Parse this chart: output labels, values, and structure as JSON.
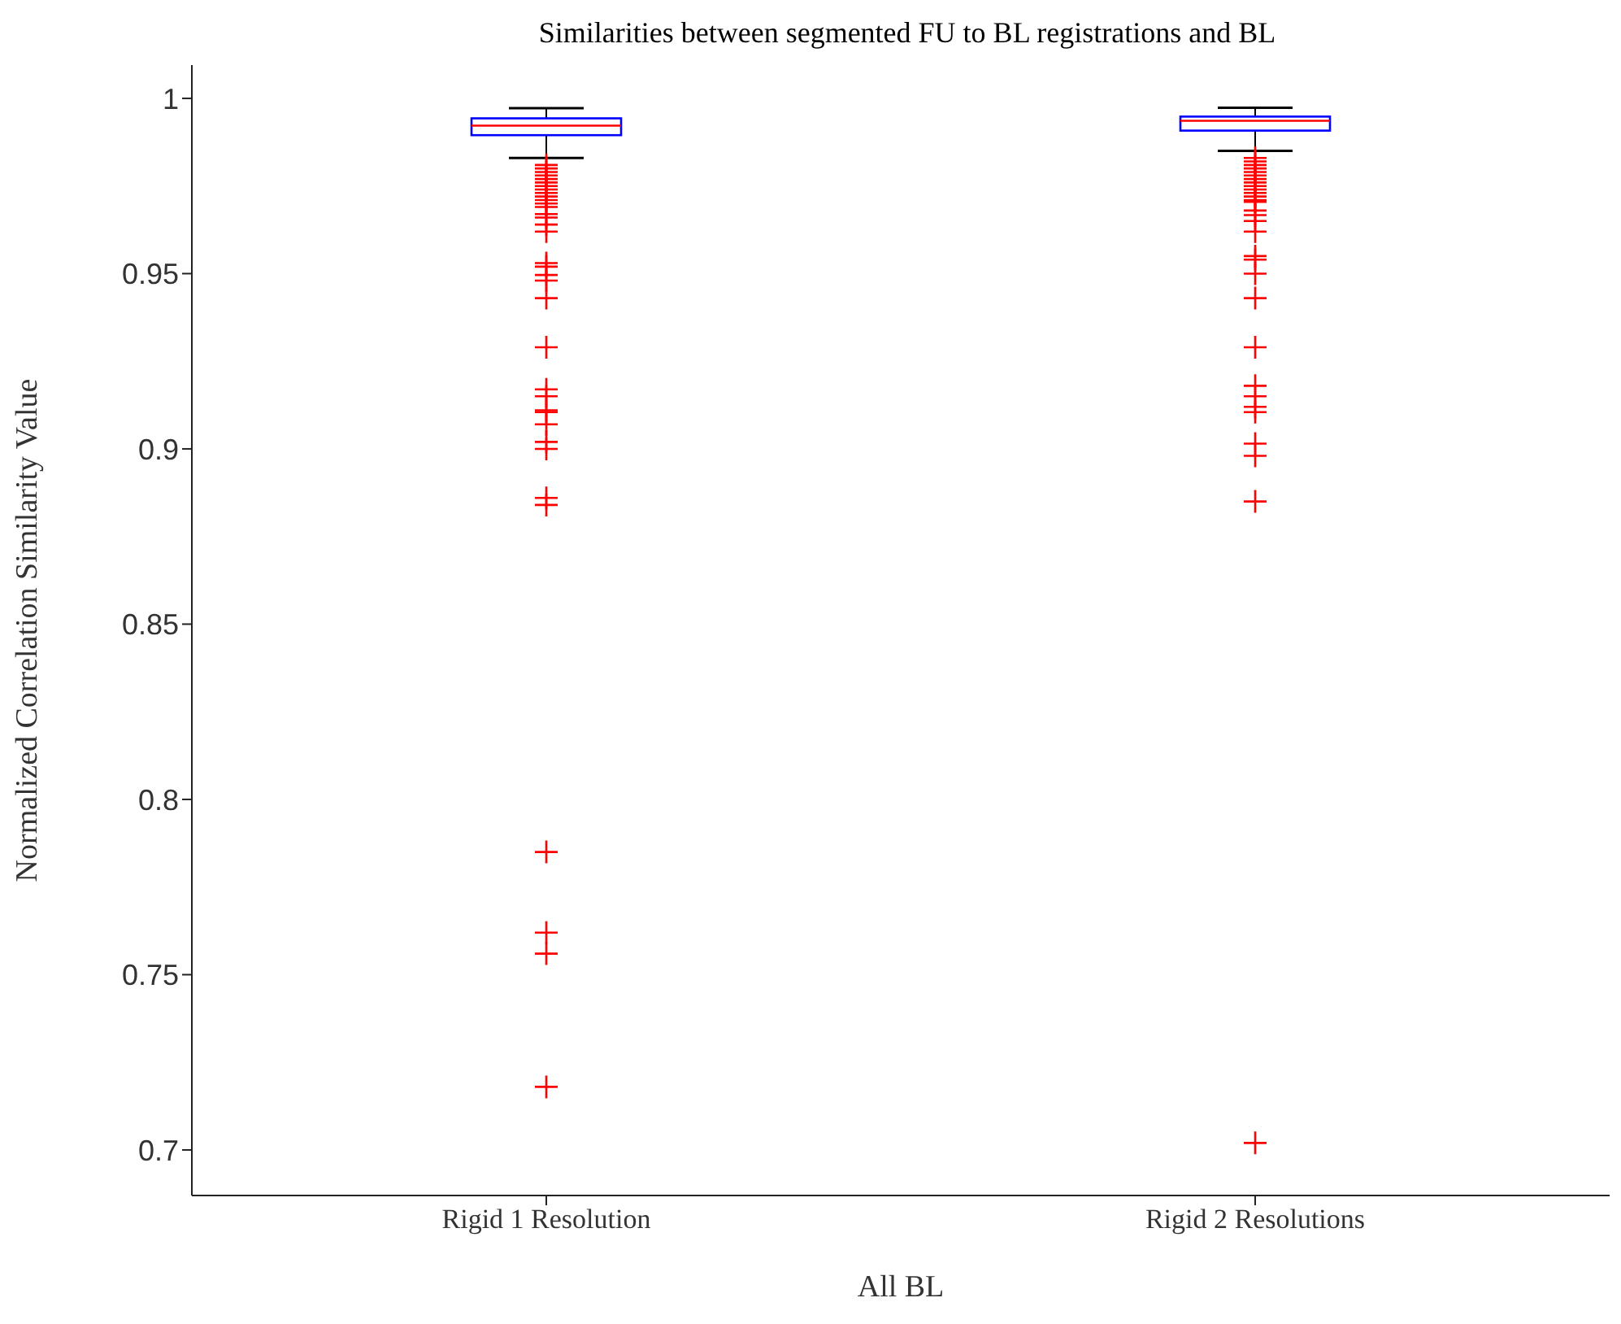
{
  "chart_data": {
    "type": "box",
    "title": "Similarities between segmented FU to BL registrations and BL",
    "xlabel": "All BL",
    "ylabel": "Normalized Correlation Similarity Value",
    "categories": [
      "Rigid 1 Resolution",
      "Rigid 2 Resolutions"
    ],
    "ylim": [
      0.687,
      1.0095
    ],
    "yticks": [
      0.7,
      0.75,
      0.8,
      0.85,
      0.9,
      0.95,
      1
    ],
    "marker": "cross",
    "series": [
      {
        "color": "#0000ff",
        "boxes": [
          {
            "low": 0.983,
            "q1": 0.9895,
            "median": 0.9922,
            "q3": 0.9943,
            "high": 0.9972,
            "outliers": [
              0.981,
              0.98,
              0.979,
              0.978,
              0.977,
              0.976,
              0.975,
              0.974,
              0.973,
              0.972,
              0.971,
              0.97,
              0.969,
              0.967,
              0.966,
              0.964,
              0.962,
              0.953,
              0.952,
              0.9496,
              0.948,
              0.943,
              0.929,
              0.917,
              0.915,
              0.911,
              0.9105,
              0.907,
              0.902,
              0.9,
              0.886,
              0.884,
              0.785,
              0.762,
              0.756,
              0.718
            ]
          },
          {
            "low": 0.985,
            "q1": 0.9908,
            "median": 0.9936,
            "q3": 0.9948,
            "high": 0.9973,
            "outliers": [
              0.983,
              0.982,
              0.981,
              0.98,
              0.979,
              0.978,
              0.977,
              0.976,
              0.975,
              0.974,
              0.973,
              0.972,
              0.971,
              0.9705,
              0.968,
              0.9667,
              0.965,
              0.962,
              0.955,
              0.954,
              0.95,
              0.943,
              0.929,
              0.918,
              0.915,
              0.912,
              0.9105,
              0.9015,
              0.898,
              0.885,
              0.702
            ]
          }
        ]
      }
    ]
  }
}
